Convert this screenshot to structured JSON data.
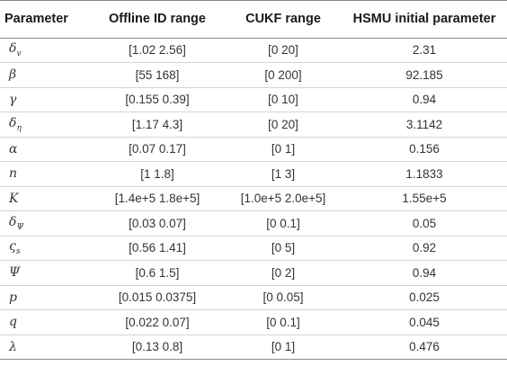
{
  "table": {
    "headers": {
      "parameter": "Parameter",
      "offline": "Offline ID range",
      "cukf": "CUKF range",
      "hsmu": "HSMU initial parameter"
    },
    "rows": [
      {
        "symbol": "δ",
        "sub": "v",
        "offline": "[1.02 2.56]",
        "cukf": "[0 20]",
        "hsmu": "2.31"
      },
      {
        "symbol": "β",
        "sub": "",
        "offline": "[55 168]",
        "cukf": "[0 200]",
        "hsmu": "92.185"
      },
      {
        "symbol": "γ",
        "sub": "",
        "offline": "[0.155 0.39]",
        "cukf": "[0 10]",
        "hsmu": "0.94"
      },
      {
        "symbol": "δ",
        "sub": "η",
        "offline": "[1.17 4.3]",
        "cukf": "[0 20]",
        "hsmu": "3.1142"
      },
      {
        "symbol": "α",
        "sub": "",
        "offline": "[0.07 0.17]",
        "cukf": "[0 1]",
        "hsmu": "0.156"
      },
      {
        "symbol": "n",
        "sub": "",
        "offline": "[1 1.8]",
        "cukf": "[1 3]",
        "hsmu": "1.1833"
      },
      {
        "symbol": "K",
        "sub": "",
        "offline": "[1.4e+5 1.8e+5]",
        "cukf": "[1.0e+5 2.0e+5]",
        "hsmu": "1.55e+5"
      },
      {
        "symbol": "δ",
        "sub": "Ψ",
        "offline": "[0.03 0.07]",
        "cukf": "[0 0.1]",
        "hsmu": "0.05"
      },
      {
        "symbol": "ς",
        "sub": "s",
        "offline": "[0.56 1.41]",
        "cukf": "[0 5]",
        "hsmu": "0.92"
      },
      {
        "symbol": "Ψ",
        "sub": "",
        "offline": "[0.6 1.5]",
        "cukf": "[0 2]",
        "hsmu": "0.94"
      },
      {
        "symbol": "p",
        "sub": "",
        "offline": "[0.015 0.0375]",
        "cukf": "[0 0.05]",
        "hsmu": "0.025"
      },
      {
        "symbol": "q",
        "sub": "",
        "offline": "[0.022 0.07]",
        "cukf": "[0 0.1]",
        "hsmu": "0.045"
      },
      {
        "symbol": "λ",
        "sub": "",
        "offline": "[0.13 0.8]",
        "cukf": "[0 1]",
        "hsmu": "0.476"
      }
    ]
  }
}
